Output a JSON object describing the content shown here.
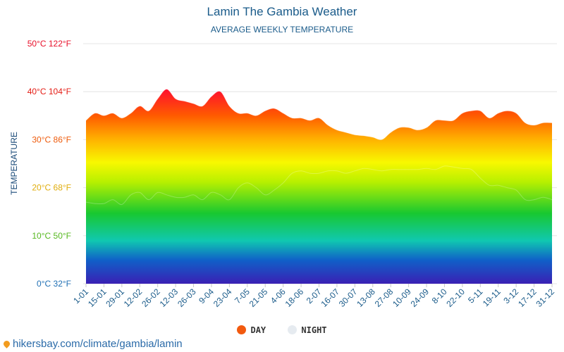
{
  "title": "Lamin The Gambia Weather",
  "subtitle": "AVERAGE WEEKLY TEMPERATURE",
  "legend": [
    {
      "label": "DAY",
      "color": "#f25a0f"
    },
    {
      "label": "NIGHT",
      "color": "#e6ebf0"
    }
  ],
  "source": "hikersbay.com/climate/gambia/lamin",
  "chart_data": {
    "type": "area",
    "title": "Lamin The Gambia Weather",
    "subtitle": "AVERAGE WEEKLY TEMPERATURE",
    "ylabel": "TEMPERATURE",
    "ylim": [
      0,
      50
    ],
    "yticks": [
      {
        "value": 0,
        "label": "0°C 32°F",
        "color": "#1f6fb4"
      },
      {
        "value": 10,
        "label": "10°C 50°F",
        "color": "#55b81e"
      },
      {
        "value": 20,
        "label": "20°C 68°F",
        "color": "#e0ad0c"
      },
      {
        "value": 30,
        "label": "30°C 86°F",
        "color": "#ee5a0a"
      },
      {
        "value": 40,
        "label": "40°C 104°F",
        "color": "#e41c14"
      },
      {
        "value": 50,
        "label": "50°C 122°F",
        "color": "#e8102a"
      }
    ],
    "x": [
      "1-01",
      "8-01",
      "15-01",
      "22-01",
      "29-01",
      "5-02",
      "12-02",
      "19-02",
      "26-02",
      "5-03",
      "12-03",
      "19-03",
      "26-03",
      "2-04",
      "9-04",
      "16-04",
      "23-04",
      "30-04",
      "7-05",
      "14-05",
      "21-05",
      "28-05",
      "4-06",
      "11-06",
      "18-06",
      "25-06",
      "2-07",
      "9-07",
      "16-07",
      "23-07",
      "30-07",
      "6-08",
      "13-08",
      "20-08",
      "27-08",
      "3-09",
      "10-09",
      "17-09",
      "24-09",
      "1-10",
      "8-10",
      "15-10",
      "22-10",
      "29-10",
      "5-11",
      "12-11",
      "19-11",
      "26-11",
      "3-12",
      "10-12",
      "17-12",
      "24-12",
      "31-12"
    ],
    "xtick_labels": [
      "1-01",
      "15-01",
      "29-01",
      "12-02",
      "26-02",
      "12-03",
      "26-03",
      "9-04",
      "23-04",
      "7-05",
      "21-05",
      "4-06",
      "18-06",
      "2-07",
      "16-07",
      "30-07",
      "13-08",
      "27-08",
      "10-09",
      "24-09",
      "8-10",
      "22-10",
      "5-11",
      "19-11",
      "3-12",
      "17-12",
      "31-12"
    ],
    "series": [
      {
        "name": "DAY",
        "values": [
          34,
          35.5,
          35,
          35.5,
          34.5,
          35.5,
          37,
          36,
          38.5,
          40.5,
          38.5,
          38,
          37.5,
          37,
          39,
          40,
          37,
          35.5,
          35.5,
          35,
          36,
          36.5,
          35.5,
          34.5,
          34.5,
          34,
          34.5,
          33,
          32,
          31.5,
          31,
          30.8,
          30.5,
          30,
          31.5,
          32.5,
          32.5,
          32,
          32.5,
          34,
          34,
          34,
          35.5,
          36,
          36,
          34.5,
          35.5,
          36,
          35.5,
          33.5,
          33,
          33.5,
          33.5
        ]
      },
      {
        "name": "NIGHT",
        "values": [
          17,
          16.7,
          16.7,
          17.5,
          16.5,
          18.5,
          19,
          17.5,
          19,
          18.5,
          18,
          18,
          18.5,
          17.5,
          19,
          18.5,
          17.5,
          20,
          21,
          20,
          18.5,
          19.5,
          21,
          23,
          23.5,
          23,
          23,
          23.5,
          23.5,
          23,
          23.5,
          24,
          23.8,
          23.5,
          23.8,
          23.8,
          23.8,
          23.8,
          24,
          23.8,
          24.5,
          24.3,
          24,
          23.8,
          22,
          20.5,
          20.5,
          20,
          19.5,
          17.5,
          17.5,
          18,
          17.5
        ]
      }
    ],
    "grid": true,
    "legend_position": "bottom-center"
  }
}
